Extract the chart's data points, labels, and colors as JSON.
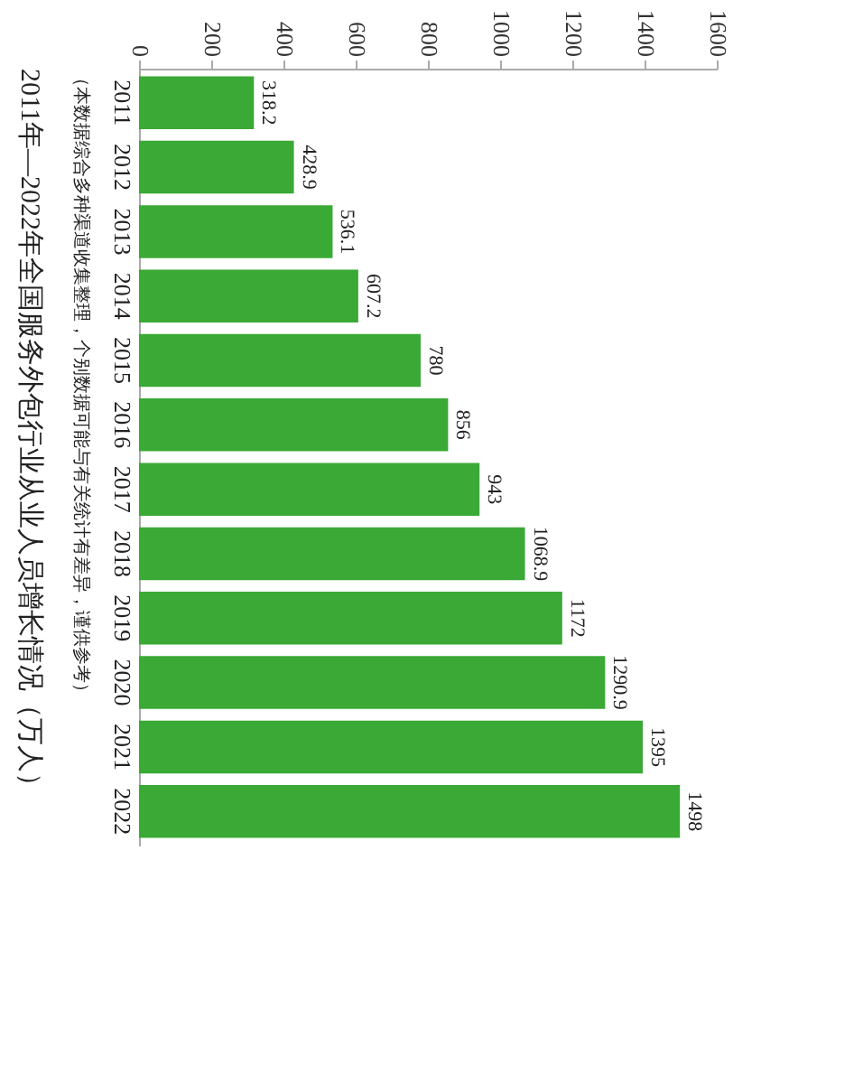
{
  "chart_data": {
    "type": "bar",
    "orientation": "horizontal",
    "title": "2011年—2022年全国服务外包行业从业人员增长情况（万人）",
    "subtitle": "（本数据综合多种渠道收集整理，个别数据可能与有关统计有差异，谨供参考）",
    "categories": [
      "2011",
      "2012",
      "2013",
      "2014",
      "2015",
      "2016",
      "2017",
      "2018",
      "2019",
      "2020",
      "2021",
      "2022"
    ],
    "values": [
      318.2,
      428.9,
      536.1,
      607.2,
      780,
      856,
      943,
      1068.9,
      1172,
      1290.9,
      1395,
      1498
    ],
    "color": "#3aa935",
    "xlim": [
      0,
      1600
    ],
    "xticks": [
      0,
      200,
      400,
      600,
      800,
      1000,
      1200,
      1400,
      1600
    ],
    "data_labels": true,
    "grid": false
  }
}
